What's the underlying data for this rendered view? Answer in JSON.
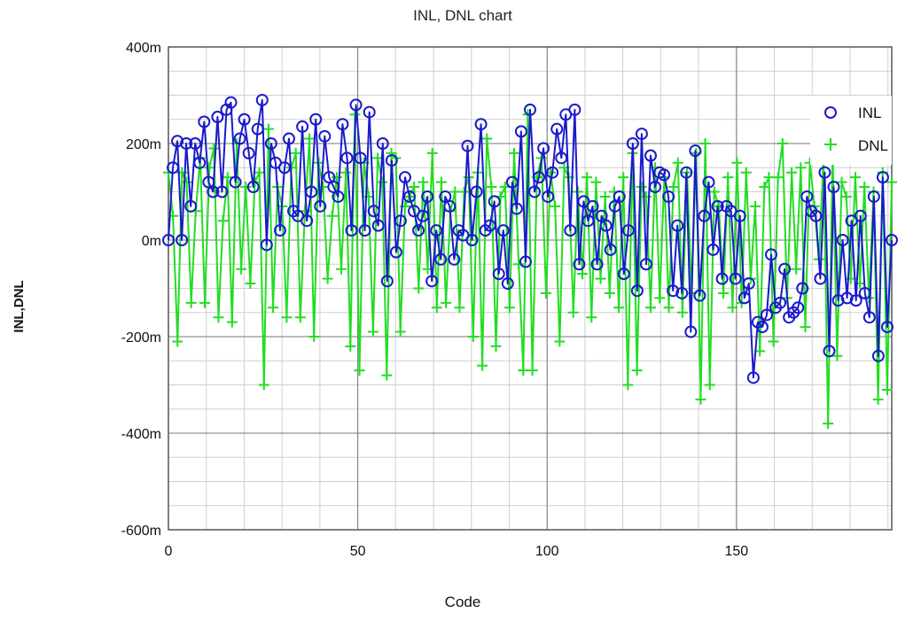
{
  "chart_data": {
    "type": "line",
    "title": "INL, DNL chart",
    "xlabel": "Code",
    "ylabel": "INL,DNL",
    "xlim": [
      0,
      191
    ],
    "ylim": [
      -0.6,
      0.4
    ],
    "x_ticks": [
      0,
      50,
      100,
      150
    ],
    "x_tick_labels": [
      "0",
      "50",
      "100",
      "150"
    ],
    "y_ticks": [
      -0.6,
      -0.4,
      -0.2,
      0,
      0.2,
      0.4
    ],
    "y_tick_labels": [
      "-600m",
      "-400m",
      "-200m",
      "0m",
      "200m",
      "400m"
    ],
    "grid": true,
    "legend_position": "top-right",
    "series": [
      {
        "name": "INL",
        "color": "#1a1acc",
        "marker": "circle",
        "y": [
          0,
          0.15,
          0.205,
          0,
          0.2,
          0.07,
          0.2,
          0.16,
          0.245,
          0.12,
          0.1,
          0.255,
          0.1,
          0.27,
          0.285,
          0.12,
          0.21,
          0.25,
          0.18,
          0.11,
          0.23,
          0.29,
          -0.01,
          0.2,
          0.16,
          0.02,
          0.15,
          0.21,
          0.06,
          0.05,
          0.235,
          0.04,
          0.1,
          0.25,
          0.07,
          0.215,
          0.13,
          0.11,
          0.09,
          0.24,
          0.17,
          0.02,
          0.28,
          0.17,
          0.02,
          0.265,
          0.06,
          0.03,
          0.2,
          -0.085,
          0.165,
          -0.025,
          0.04,
          0.13,
          0.09,
          0.06,
          0.02,
          0.05,
          0.09,
          -0.085,
          0.02,
          -0.04,
          0.09,
          0.07,
          -0.04,
          0.02,
          0.01,
          0.195,
          0,
          0.1,
          0.24,
          0.02,
          0.03,
          0.08,
          -0.07,
          0.02,
          -0.09,
          0.12,
          0.065,
          0.225,
          -0.045,
          0.27,
          0.1,
          0.13,
          0.19,
          0.09,
          0.14,
          0.23,
          0.17,
          0.26,
          0.02,
          0.27,
          -0.05,
          0.08,
          0.04,
          0.07,
          -0.05,
          0.05,
          0.03,
          -0.02,
          0.07,
          0.09,
          -0.07,
          0.02,
          0.2,
          -0.105,
          0.22,
          -0.05,
          0.175,
          0.11,
          0.14,
          0.135,
          0.09,
          -0.105,
          0.03,
          -0.11,
          0.14,
          -0.19,
          0.185,
          -0.115,
          0.05,
          0.12,
          -0.02,
          0.07,
          -0.08,
          0.07,
          0.06,
          -0.08,
          0.05,
          -0.12,
          -0.09,
          -0.285,
          -0.17,
          -0.18,
          -0.155,
          -0.03,
          -0.14,
          -0.13,
          -0.06,
          -0.16,
          -0.15,
          -0.14,
          -0.1,
          0.09,
          0.06,
          0.05,
          -0.08,
          0.14,
          -0.23,
          0.11,
          -0.125,
          0,
          -0.12,
          0.04,
          -0.125,
          0.05,
          -0.11,
          -0.16,
          0.09,
          -0.24,
          0.13,
          -0.18,
          0
        ]
      },
      {
        "name": "DNL",
        "color": "#22dd22",
        "marker": "plus",
        "y": [
          0.14,
          0.05,
          -0.21,
          0.14,
          0.12,
          -0.13,
          0.06,
          0.17,
          -0.13,
          0.15,
          0.19,
          -0.16,
          0.04,
          0.13,
          -0.17,
          0.2,
          -0.06,
          0.11,
          -0.09,
          0.12,
          0.14,
          -0.3,
          0.23,
          -0.14,
          0.11,
          0.07,
          -0.16,
          0.15,
          0.18,
          -0.16,
          0.06,
          0.21,
          -0.2,
          0.16,
          0.11,
          -0.08,
          0.05,
          0.13,
          -0.06,
          0.14,
          -0.22,
          0.26,
          -0.27,
          0.16,
          0.09,
          -0.19,
          0.17,
          0.12,
          -0.28,
          0.18,
          0.17,
          -0.19,
          0.07,
          0.09,
          0.11,
          -0.1,
          0.12,
          -0.06,
          0.18,
          -0.14,
          0.12,
          -0.13,
          0.06,
          0.1,
          -0.14,
          0.1,
          0.13,
          -0.2,
          0.14,
          -0.26,
          0.21,
          0.11,
          -0.22,
          0.09,
          0.11,
          -0.14,
          0.18,
          -0.05,
          -0.27,
          0.26,
          -0.27,
          0.13,
          0.17,
          -0.11,
          0.14,
          0.07,
          -0.21,
          0.15,
          0.13,
          -0.15,
          0.1,
          -0.07,
          0.13,
          -0.16,
          0.12,
          -0.08,
          0.09,
          -0.11,
          0.1,
          -0.14,
          0.13,
          -0.3,
          0.18,
          -0.27,
          0.11,
          0.09,
          -0.14,
          0.15,
          -0.12,
          0.13,
          -0.14,
          0.11,
          0.16,
          -0.15,
          0.14,
          -0.11,
          0.18,
          -0.33,
          0.2,
          -0.3,
          0.1,
          0.07,
          -0.11,
          0.13,
          -0.14,
          0.16,
          -0.13,
          0.14,
          -0.08,
          0.07,
          -0.23,
          0.11,
          0.13,
          -0.21,
          0.13,
          0.2,
          -0.12,
          0.14,
          -0.06,
          0.15,
          -0.18,
          0.16,
          0.07,
          -0.04,
          0.17,
          -0.38,
          0.18,
          -0.24,
          0.12,
          0.09,
          -0.08,
          0.13,
          -0.09,
          0.11,
          -0.12,
          0.1,
          -0.33,
          0.14,
          -0.31,
          0.12
        ]
      }
    ]
  }
}
